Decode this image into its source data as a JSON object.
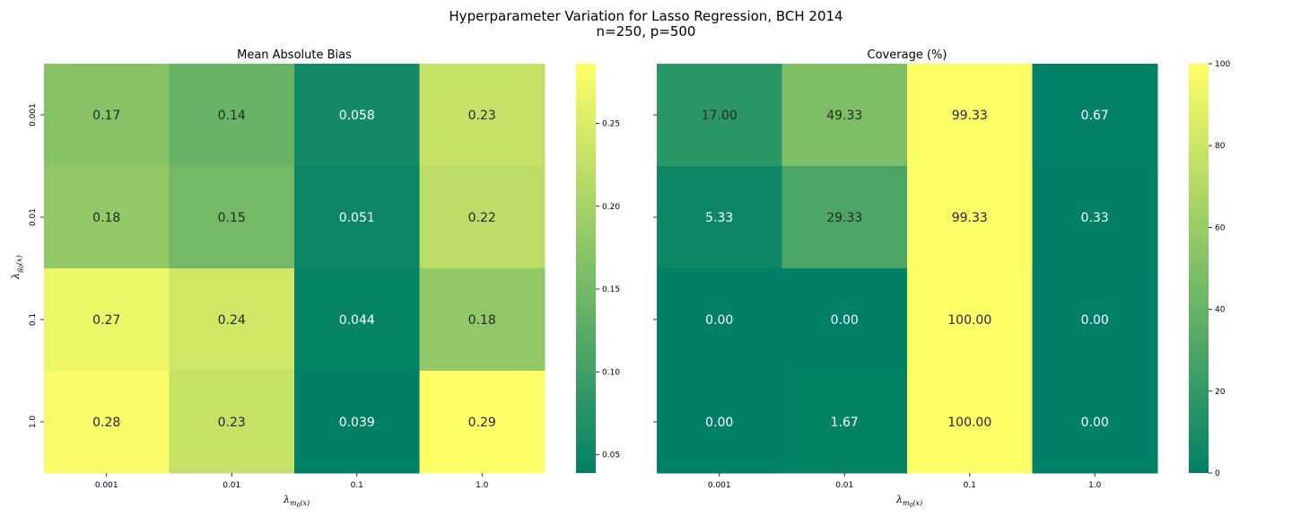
{
  "figure": {
    "title_line1": "Hyperparameter Variation for Lasso Regression, BCH 2014",
    "title_line2": "n=250, p=500"
  },
  "colormap": {
    "low": "#008066",
    "mid": "#80c066",
    "high": "#ffff66",
    "name": "summer_r"
  },
  "chart_data": [
    {
      "type": "heatmap",
      "title": "Mean Absolute Bias",
      "xlabel": "λ_{m0(x)}",
      "ylabel": "λ_{g0(x)}",
      "x_categories": [
        "0.001",
        "0.01",
        "0.1",
        "1.0"
      ],
      "y_categories": [
        "0.001",
        "0.01",
        "0.1",
        "1.0"
      ],
      "values": [
        [
          0.17,
          0.14,
          0.058,
          0.23
        ],
        [
          0.18,
          0.15,
          0.051,
          0.22
        ],
        [
          0.27,
          0.24,
          0.044,
          0.18
        ],
        [
          0.28,
          0.23,
          0.039,
          0.29
        ]
      ],
      "labels": [
        [
          "0.17",
          "0.14",
          "0.058",
          "0.23"
        ],
        [
          "0.18",
          "0.15",
          "0.051",
          "0.22"
        ],
        [
          "0.27",
          "0.24",
          "0.044",
          "0.18"
        ],
        [
          "0.28",
          "0.23",
          "0.039",
          "0.29"
        ]
      ],
      "colorbar": {
        "vmin": 0.039,
        "vmax": 0.286,
        "ticks": [
          0.05,
          0.1,
          0.15,
          0.2,
          0.25
        ],
        "tick_labels": [
          "0.05",
          "0.10",
          "0.15",
          "0.20",
          "0.25"
        ]
      }
    },
    {
      "type": "heatmap",
      "title": "Coverage (%)",
      "xlabel": "λ_{m0(x)}",
      "ylabel": "",
      "x_categories": [
        "0.001",
        "0.01",
        "0.1",
        "1.0"
      ],
      "y_categories": [
        "",
        "",
        "",
        ""
      ],
      "values": [
        [
          17.0,
          49.33,
          99.33,
          0.67
        ],
        [
          5.33,
          29.33,
          99.33,
          0.33
        ],
        [
          0.0,
          0.0,
          100.0,
          0.0
        ],
        [
          0.0,
          1.67,
          100.0,
          0.0
        ]
      ],
      "labels": [
        [
          "17.00",
          "49.33",
          "99.33",
          "0.67"
        ],
        [
          "5.33",
          "29.33",
          "99.33",
          "0.33"
        ],
        [
          "0.00",
          "0.00",
          "100.00",
          "0.00"
        ],
        [
          "0.00",
          "1.67",
          "100.00",
          "0.00"
        ]
      ],
      "colorbar": {
        "vmin": 0,
        "vmax": 100,
        "ticks": [
          0,
          20,
          40,
          60,
          80,
          100
        ],
        "tick_labels": [
          "0",
          "20",
          "40",
          "60",
          "80",
          "100"
        ]
      }
    }
  ]
}
